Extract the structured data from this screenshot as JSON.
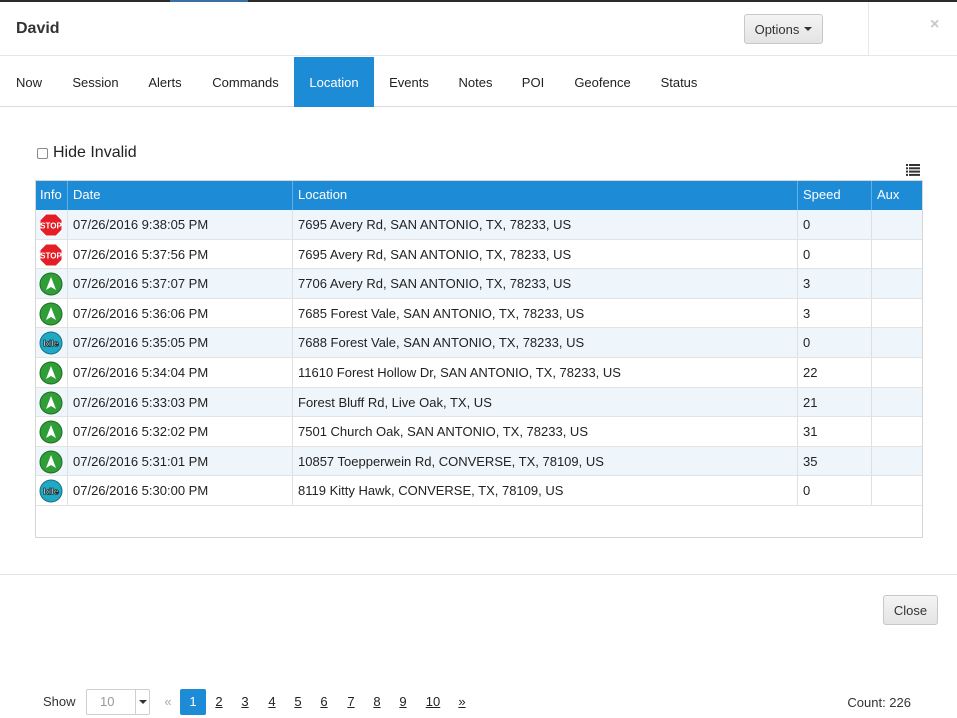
{
  "dialog": {
    "title": "David",
    "options_label": "Options",
    "close_glyph": "×",
    "close_button_label": "Close"
  },
  "tabs": [
    {
      "label": "Now"
    },
    {
      "label": "Session"
    },
    {
      "label": "Alerts"
    },
    {
      "label": "Commands"
    },
    {
      "label": "Location",
      "active": true
    },
    {
      "label": "Events"
    },
    {
      "label": "Notes"
    },
    {
      "label": "POI"
    },
    {
      "label": "Geofence"
    },
    {
      "label": "Status"
    }
  ],
  "filter": {
    "hide_invalid_label": "Hide Invalid",
    "hide_invalid_checked": false
  },
  "table": {
    "columns": [
      "Info",
      "Date",
      "Location",
      "Speed",
      "Aux"
    ],
    "rows": [
      {
        "icon": "stop-icon",
        "date": "07/26/2016 9:38:05 PM",
        "location": "7695 Avery Rd, SAN ANTONIO, TX, 78233, US",
        "speed": "0",
        "aux": ""
      },
      {
        "icon": "stop-icon",
        "date": "07/26/2016 5:37:56 PM",
        "location": "7695 Avery Rd, SAN ANTONIO, TX, 78233, US",
        "speed": "0",
        "aux": ""
      },
      {
        "icon": "heading-arrow-icon",
        "date": "07/26/2016 5:37:07 PM",
        "location": "7706 Avery Rd, SAN ANTONIO, TX, 78233, US",
        "speed": "3",
        "aux": ""
      },
      {
        "icon": "heading-arrow-icon",
        "date": "07/26/2016 5:36:06 PM",
        "location": "7685 Forest Vale, SAN ANTONIO, TX, 78233, US",
        "speed": "3",
        "aux": ""
      },
      {
        "icon": "idle-icon",
        "date": "07/26/2016 5:35:05 PM",
        "location": "7688 Forest Vale, SAN ANTONIO, TX, 78233, US",
        "speed": "0",
        "aux": ""
      },
      {
        "icon": "heading-arrow-icon",
        "date": "07/26/2016 5:34:04 PM",
        "location": "11610 Forest Hollow Dr, SAN ANTONIO, TX, 78233, US",
        "speed": "22",
        "aux": ""
      },
      {
        "icon": "heading-arrow-icon",
        "date": "07/26/2016 5:33:03 PM",
        "location": "Forest Bluff Rd, Live Oak, TX, US",
        "speed": "21",
        "aux": ""
      },
      {
        "icon": "heading-arrow-icon",
        "date": "07/26/2016 5:32:02 PM",
        "location": "7501 Church Oak, SAN ANTONIO, TX, 78233, US",
        "speed": "31",
        "aux": ""
      },
      {
        "icon": "heading-arrow-icon",
        "date": "07/26/2016 5:31:01 PM",
        "location": "10857 Toepperwein Rd, CONVERSE, TX, 78109, US",
        "speed": "35",
        "aux": ""
      },
      {
        "icon": "idle-icon",
        "date": "07/26/2016 5:30:00 PM",
        "location": "8119 Kitty Hawk, CONVERSE, TX, 78109, US",
        "speed": "0",
        "aux": ""
      }
    ],
    "icon_text": {
      "stop": "STOP",
      "idle": "Idle"
    }
  },
  "pagination": {
    "show_label": "Show",
    "page_size": "10",
    "prev": "«",
    "pages": [
      "1",
      "2",
      "3",
      "4",
      "5",
      "6",
      "7",
      "8",
      "9",
      "10"
    ],
    "next": "»",
    "current_page": "1",
    "count_label": "Count: 226"
  },
  "colors": {
    "accent": "#1d8bd6",
    "stop_red": "#e41e26",
    "go_green": "#2f9e37",
    "idle_teal": "#20a9c4"
  }
}
